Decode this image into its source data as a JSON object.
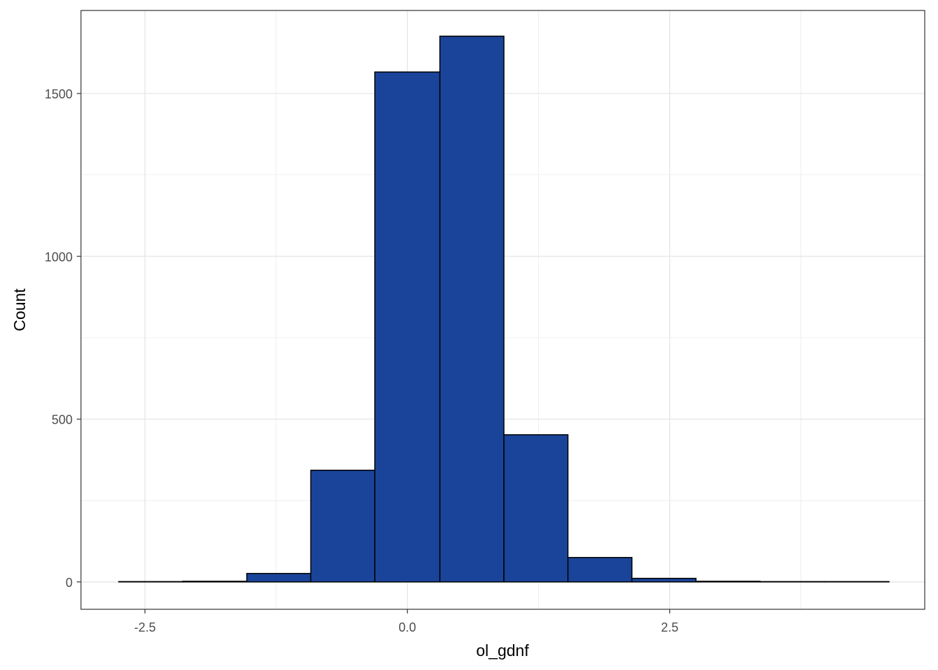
{
  "chart_data": {
    "type": "histogram",
    "x_label": "ol_gdnf",
    "y_label": "Count",
    "bins": [
      -2.75,
      -2.14,
      -1.53,
      -0.92,
      -0.31,
      0.31,
      0.92,
      1.53,
      2.14,
      2.75,
      3.36,
      3.98,
      4.59
    ],
    "counts": [
      1,
      2,
      26,
      343,
      1566,
      1676,
      452,
      75,
      11,
      2,
      1,
      1
    ],
    "color": "#1a4499",
    "edge_color": "#000000",
    "xlim": [
      -3.11,
      4.93
    ],
    "ylim": [
      -84,
      1755
    ],
    "xticks": [
      -2.5,
      {
        "value": 0,
        "label": "0.0"
      },
      2.5
    ],
    "yticks": [
      0,
      500,
      1000,
      1500
    ],
    "x_minor_grid": [
      -1.25,
      1.25,
      3.75
    ],
    "y_minor_grid": [
      250,
      750,
      1250
    ],
    "grid": true
  }
}
